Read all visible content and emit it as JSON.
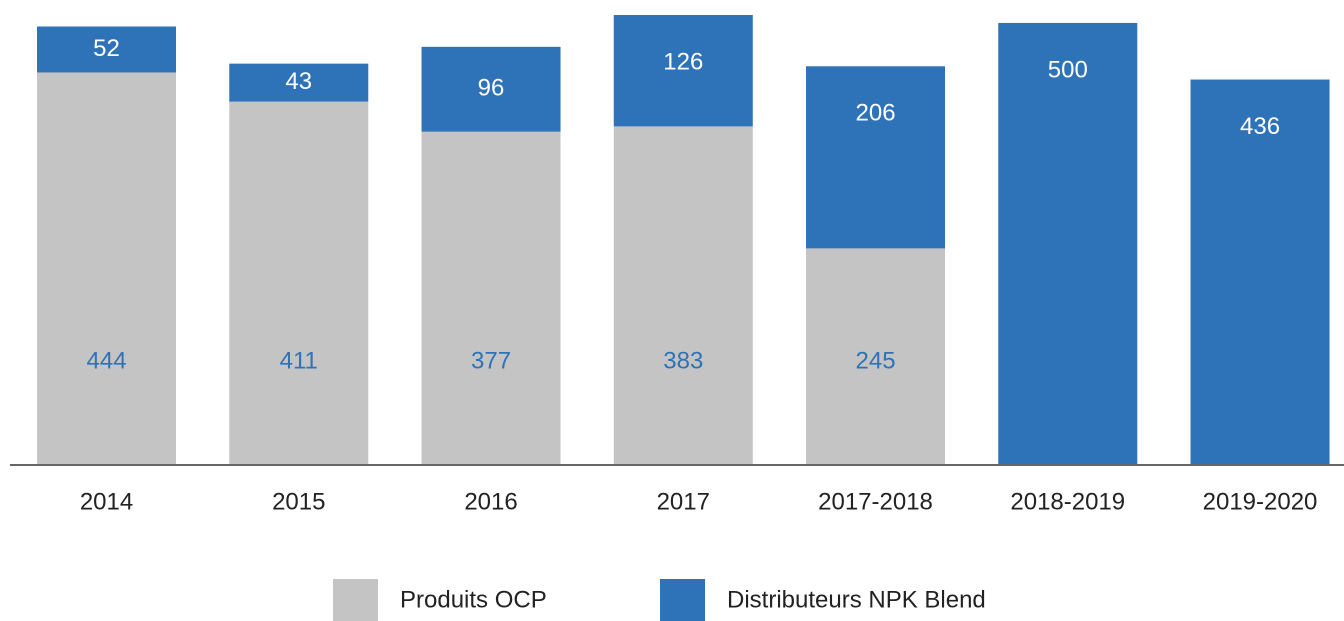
{
  "chart_data": {
    "type": "stacked_bar",
    "categories": [
      "2014",
      "2015",
      "2016",
      "2017",
      "2017-2018",
      "2018-2019",
      "2019-2020"
    ],
    "series": [
      {
        "name": "Produits OCP",
        "color": "#c4c4c4",
        "label_color": "#2e72b8",
        "values": [
          444,
          411,
          377,
          383,
          245,
          null,
          null
        ]
      },
      {
        "name": "Distributeurs NPK Blend",
        "color": "#2e72b8",
        "label_color": "#ffffff",
        "values": [
          52,
          43,
          96,
          126,
          206,
          500,
          436
        ]
      }
    ]
  }
}
